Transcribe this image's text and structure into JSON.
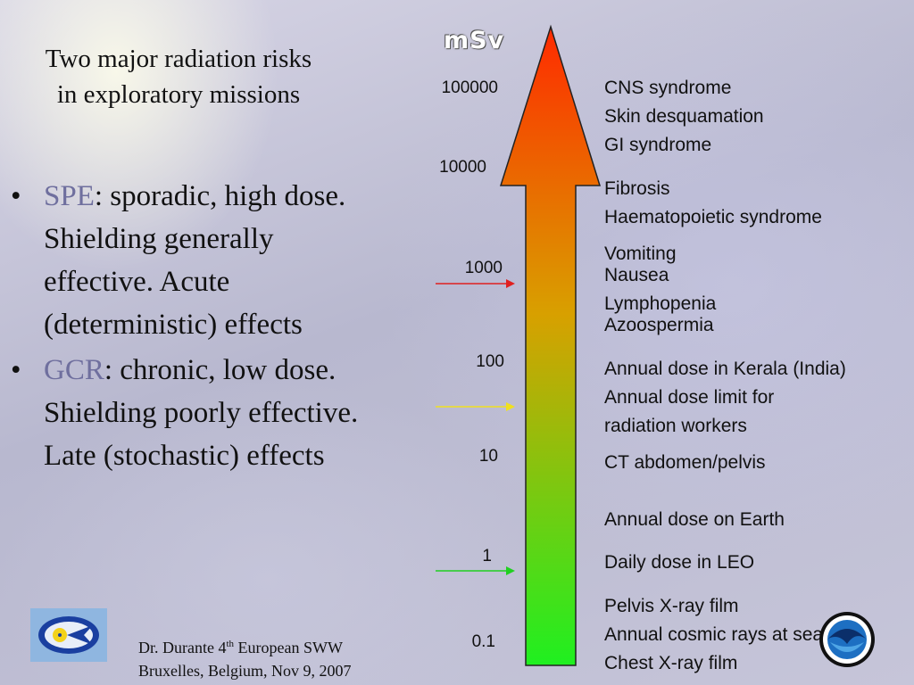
{
  "slide": {
    "title": "Two major radiation risks in exploratory missions",
    "bullets": [
      {
        "keyword": "SPE",
        "text": ": sporadic, high dose. Shielding generally effective. Acute (deterministic) effects"
      },
      {
        "keyword": "GCR",
        "text": ": chronic, low dose. Shielding poorly effective. Late (stochastic) effects"
      }
    ],
    "bullet_glyph": "•",
    "footer_line1_a": "Dr. Durante 4",
    "footer_line1_sup": "th",
    "footer_line1_b": " European SWW",
    "footer_line2": "Bruxelles, Belgium, Nov 9, 2007"
  },
  "scale": {
    "unit": "mSv",
    "ticks": [
      "100000",
      "10000",
      "1000",
      "100",
      "10",
      "1",
      "0.1"
    ],
    "effects": [
      "CNS syndrome",
      "Skin desquamation",
      "GI syndrome",
      "Fibrosis",
      "Haematopoietic syndrome",
      "Vomiting",
      "Nausea",
      "Lymphopenia",
      "Azoospermia",
      "Annual dose in Kerala (India)",
      "Annual dose limit for",
      "radiation workers",
      "CT abdomen/pelvis",
      "Annual dose on Earth",
      "Daily dose in LEO",
      "Pelvis X-ray film",
      "Annual cosmic rays at sea level",
      "Chest X-ray film"
    ],
    "markers": [
      {
        "tick": "1000",
        "color": "#e02020"
      },
      {
        "tick": "100",
        "color": "#f0e020"
      },
      {
        "tick": "1",
        "color": "#20d020"
      }
    ]
  },
  "colors": {
    "arrow_top": "#ff2a00",
    "arrow_mid": "#c8b000",
    "arrow_bottom": "#1ff020",
    "keyword": "#6f6f9e"
  },
  "logos": {
    "left": "esa-space-weather-logo",
    "right": "noaa-logo"
  }
}
